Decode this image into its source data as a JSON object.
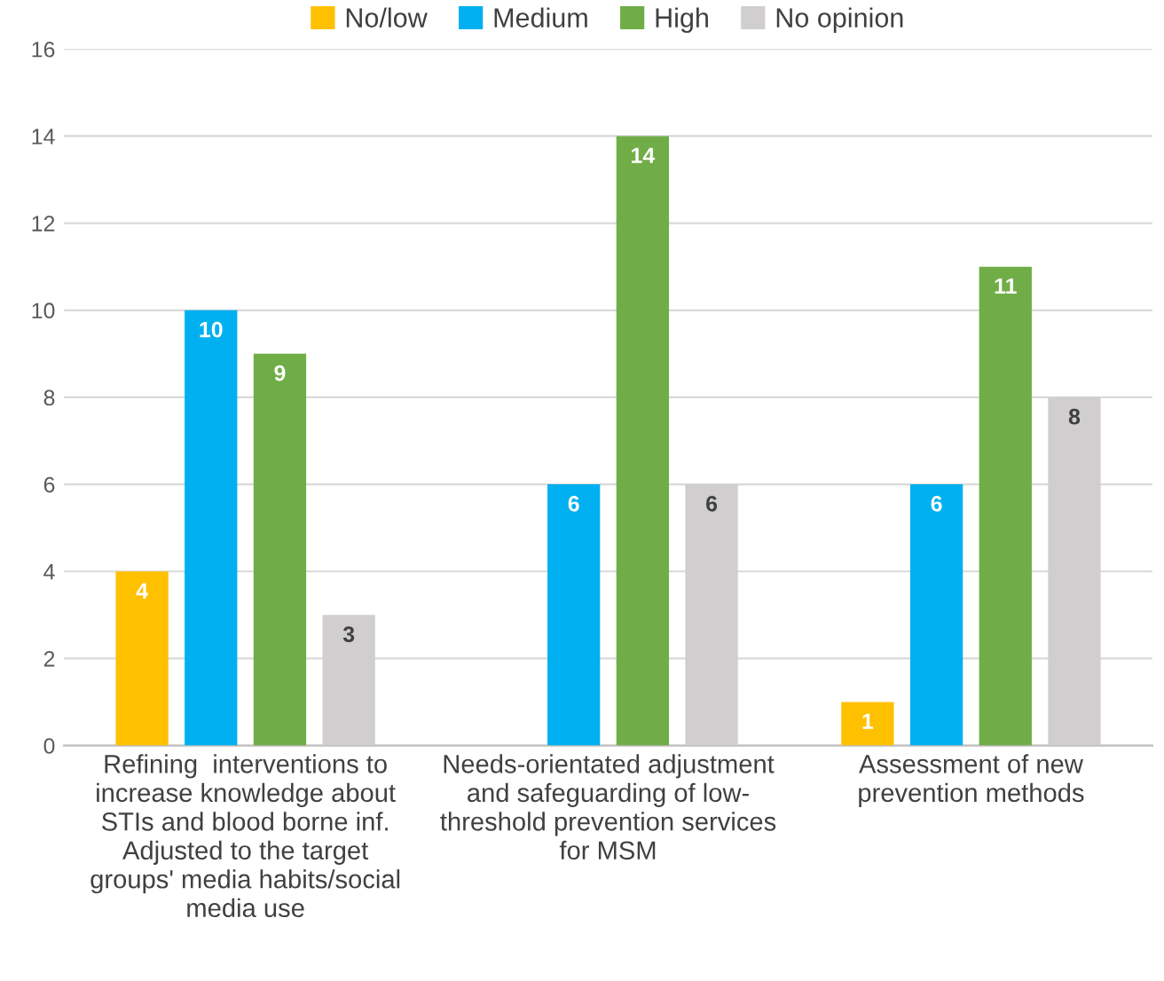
{
  "chart_data": {
    "type": "bar",
    "categories": [
      "Refining  interventions to\nincrease knowledge about\nSTIs and blood borne inf.\nAdjusted to the target\ngroups' media habits/social\nmedia use",
      "Needs-orientated adjustment\nand safeguarding of low-\nthreshold prevention services\nfor MSM",
      "Assessment of new\nprevention methods"
    ],
    "series": [
      {
        "name": "No/low",
        "color": "#ffc000",
        "values": [
          4,
          null,
          1
        ]
      },
      {
        "name": "Medium",
        "color": "#00b0f0",
        "values": [
          10,
          6,
          6
        ]
      },
      {
        "name": "High",
        "color": "#70ad47",
        "values": [
          9,
          14,
          11
        ]
      },
      {
        "name": "No opinion",
        "color": "#d0cece",
        "values": [
          3,
          6,
          8
        ]
      }
    ],
    "ylim": [
      0,
      16
    ],
    "yticks": [
      0,
      2,
      4,
      6,
      8,
      10,
      12,
      14,
      16
    ],
    "grid": "y",
    "legend": "top",
    "data_labels": true
  }
}
